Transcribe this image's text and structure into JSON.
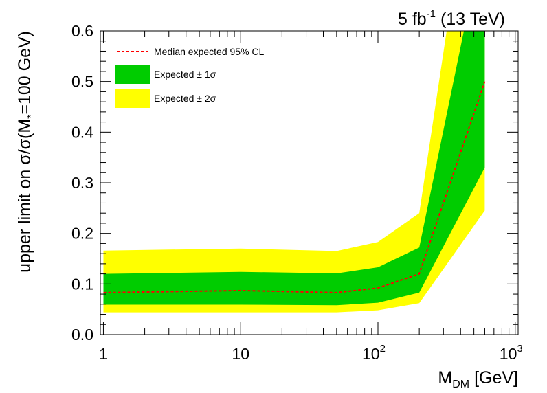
{
  "chart_data": {
    "type": "area",
    "title": "5 fb-1 (13 TeV)",
    "title_parts": {
      "lead": "5 fb",
      "sup": "-1",
      "tail": " (13 TeV)"
    },
    "xlabel": {
      "main": "M",
      "sub": "DM",
      "tail": " [GeV]"
    },
    "ylabel": {
      "lead": "upper limit on σ/σ(M",
      "sub": "*",
      "tail": "=100 GeV)"
    },
    "x_scale": "log",
    "xlim": [
      0.95,
      1050
    ],
    "ylim": [
      0,
      0.6
    ],
    "x_ticks": [
      {
        "value": 1,
        "label": "1"
      },
      {
        "value": 10,
        "label": "10"
      },
      {
        "value": 100,
        "label": "10",
        "sup": "2"
      },
      {
        "value": 1000,
        "label": "10",
        "sup": "3"
      }
    ],
    "y_ticks": [
      {
        "value": 0,
        "label": "0.0"
      },
      {
        "value": 0.1,
        "label": "0.1"
      },
      {
        "value": 0.2,
        "label": "0.2"
      },
      {
        "value": 0.3,
        "label": "0.3"
      },
      {
        "value": 0.4,
        "label": "0.4"
      },
      {
        "value": 0.5,
        "label": "0.5"
      },
      {
        "value": 0.6,
        "label": "0.6"
      }
    ],
    "x": [
      1,
      10,
      50,
      100,
      200,
      600
    ],
    "series": [
      {
        "name": "Median expected 95% CL",
        "kind": "line",
        "color": "#ff0000",
        "style": "dashed",
        "values": [
          0.083,
          0.087,
          0.083,
          0.092,
          0.12,
          0.5
        ]
      },
      {
        "name": "Expected ± 1σ",
        "kind": "band",
        "color": "#00cc00",
        "low": [
          0.059,
          0.059,
          0.058,
          0.063,
          0.083,
          0.33
        ],
        "high": [
          0.12,
          0.124,
          0.121,
          0.133,
          0.172,
          0.8
        ]
      },
      {
        "name": "Expected ± 2σ",
        "kind": "band",
        "color": "#ffff00",
        "low": [
          0.044,
          0.044,
          0.044,
          0.048,
          0.062,
          0.245
        ],
        "high": [
          0.166,
          0.17,
          0.165,
          0.183,
          0.24,
          1.1
        ]
      }
    ],
    "legend": {
      "placement": "top-left",
      "entries": [
        "Median expected 95% CL",
        "Expected ± 1σ",
        "Expected ± 2σ"
      ]
    },
    "grid": false
  }
}
